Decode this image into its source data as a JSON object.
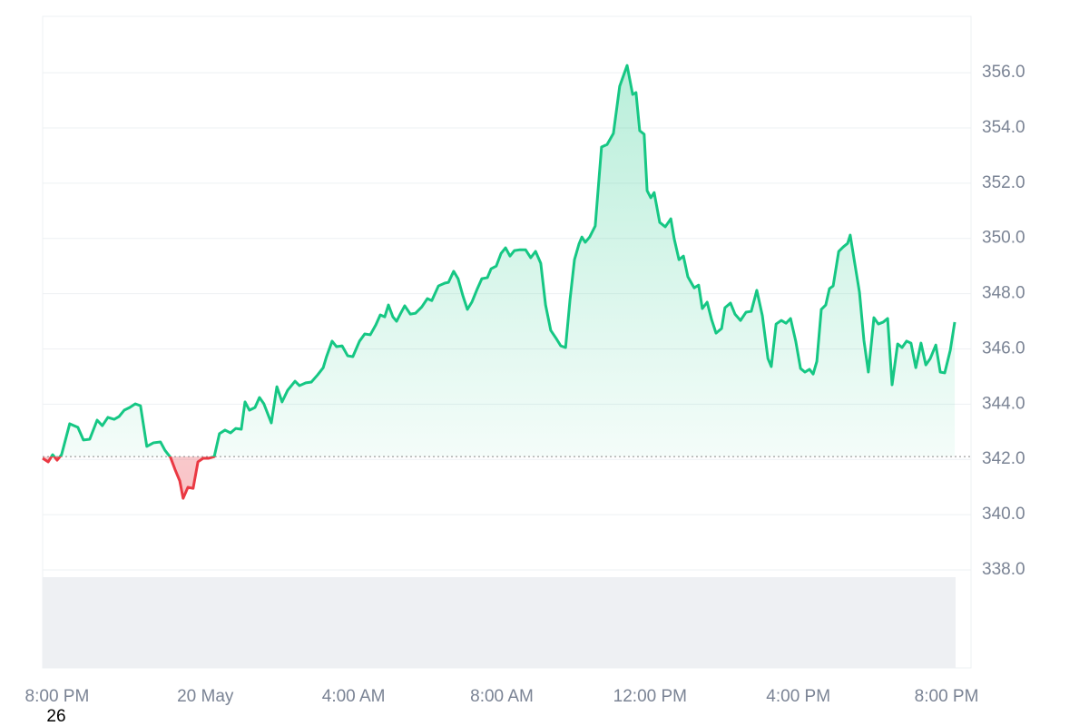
{
  "chart_data": {
    "type": "baseline-line",
    "x": [
      -0.39,
      -0.24,
      -0.12,
      0,
      0.12,
      0.34,
      0.56,
      0.71,
      0.88,
      1.08,
      1.22,
      1.37,
      1.54,
      1.67,
      1.81,
      1.96,
      2.11,
      2.25,
      2.42,
      2.6,
      2.79,
      2.91,
      3.06,
      3.18,
      3.31,
      3.4,
      3.53,
      3.67,
      3.8,
      3.94,
      4.09,
      4.24,
      4.38,
      4.53,
      4.68,
      4.82,
      4.97,
      5.07,
      5.19,
      5.34,
      5.46,
      5.58,
      5.78,
      5.93,
      6.07,
      6.22,
      6.42,
      6.54,
      6.71,
      6.86,
      7.03,
      7.18,
      7.27,
      7.42,
      7.54,
      7.69,
      7.84,
      7.98,
      8.16,
      8.3,
      8.45,
      8.6,
      8.72,
      8.84,
      8.94,
      9.06,
      9.16,
      9.26,
      9.38,
      9.53,
      9.67,
      9.84,
      9.99,
      10.11,
      10.29,
      10.46,
      10.56,
      10.7,
      10.82,
      10.95,
      11.07,
      11.19,
      11.34,
      11.46,
      11.61,
      11.71,
      11.85,
      11.98,
      12.1,
      12.22,
      12.34,
      12.49,
      12.64,
      12.78,
      12.91,
      13.05,
      13.18,
      13.32,
      13.47,
      13.59,
      13.72,
      13.84,
      13.96,
      14.08,
      14.16,
      14.25,
      14.37,
      14.52,
      14.69,
      14.84,
      15.01,
      15.18,
      15.38,
      15.53,
      15.62,
      15.72,
      15.84,
      15.92,
      16.02,
      16.11,
      16.26,
      16.41,
      16.56,
      16.65,
      16.78,
      16.9,
      17.02,
      17.19,
      17.31,
      17.41,
      17.54,
      17.66,
      17.78,
      17.93,
      18.02,
      18.17,
      18.29,
      18.44,
      18.59,
      18.73,
      18.88,
      19.03,
      19.18,
      19.27,
      19.4,
      19.54,
      19.67,
      19.79,
      19.93,
      20.06,
      20.18,
      20.3,
      20.4,
      20.5,
      20.62,
      20.74,
      20.84,
      20.94,
      21.09,
      21.21,
      21.33,
      21.4,
      21.53,
      21.65,
      21.77,
      21.89,
      22.04,
      22.16,
      22.29,
      22.41,
      22.53,
      22.68,
      22.8,
      22.92,
      23.04,
      23.17,
      23.31,
      23.44,
      23.56,
      23.71,
      23.83,
      23.95,
      24.1,
      24.22
    ],
    "values": [
      342.04,
      341.91,
      342.17,
      341.97,
      342.17,
      343.29,
      343.16,
      342.7,
      342.73,
      343.42,
      343.22,
      343.52,
      343.45,
      343.55,
      343.78,
      343.88,
      344.01,
      343.94,
      342.47,
      342.6,
      342.63,
      342.33,
      342.07,
      341.64,
      341.22,
      340.59,
      340.99,
      340.95,
      341.91,
      342.04,
      342.04,
      342.1,
      342.93,
      343.06,
      342.96,
      343.12,
      343.09,
      344.08,
      343.78,
      343.88,
      344.24,
      344.01,
      343.32,
      344.63,
      344.08,
      344.5,
      344.83,
      344.67,
      344.77,
      344.8,
      345.06,
      345.32,
      345.72,
      346.28,
      346.08,
      346.11,
      345.75,
      345.72,
      346.28,
      346.54,
      346.51,
      346.87,
      347.23,
      347.16,
      347.59,
      347.16,
      347,
      347.26,
      347.56,
      347.26,
      347.29,
      347.52,
      347.82,
      347.75,
      348.28,
      348.38,
      348.41,
      348.81,
      348.54,
      347.92,
      347.43,
      347.69,
      348.18,
      348.54,
      348.58,
      348.9,
      349,
      349.46,
      349.66,
      349.36,
      349.56,
      349.59,
      349.59,
      349.3,
      349.53,
      349.1,
      347.59,
      346.67,
      346.37,
      346.11,
      346.05,
      347.79,
      349.23,
      349.79,
      350.05,
      349.86,
      350.05,
      350.45,
      353.31,
      353.4,
      353.8,
      355.51,
      356.26,
      355.21,
      355.28,
      353.9,
      353.77,
      351.73,
      351.47,
      351.66,
      350.58,
      350.42,
      350.71,
      349.99,
      349.23,
      349.36,
      348.61,
      348.21,
      348.31,
      347.46,
      347.69,
      347.06,
      346.57,
      346.74,
      347.49,
      347.66,
      347.26,
      347.03,
      347.33,
      347.36,
      348.12,
      347.2,
      345.65,
      345.36,
      346.9,
      347.03,
      346.93,
      347.1,
      346.28,
      345.29,
      345.16,
      345.26,
      345.09,
      345.55,
      347.43,
      347.59,
      348.18,
      348.28,
      349.53,
      349.69,
      349.82,
      350.12,
      349.04,
      348.05,
      346.31,
      345.16,
      347.13,
      346.9,
      346.97,
      347.1,
      344.7,
      346.18,
      346.05,
      346.28,
      346.21,
      345.32,
      346.21,
      345.42,
      345.65,
      346.14,
      345.16,
      345.13,
      345.95,
      346.97
    ],
    "baseline": 342.1,
    "colors": {
      "up": "#16c784",
      "down": "#ea3943"
    },
    "xlim": [
      -0.39,
      24.66
    ],
    "xticks": [
      {
        "value": 0,
        "label": "8:00 PM"
      },
      {
        "value": 4,
        "label": "20 May"
      },
      {
        "value": 8,
        "label": "4:00 AM"
      },
      {
        "value": 12,
        "label": "8:00 AM"
      },
      {
        "value": 16,
        "label": "12:00 PM"
      },
      {
        "value": 20,
        "label": "4:00 PM"
      },
      {
        "value": 24,
        "label": "8:00 PM"
      }
    ],
    "ylim": [
      334.45,
      358.04
    ],
    "yticks": [
      {
        "value": 338,
        "label": "338.0"
      },
      {
        "value": 340,
        "label": "340.0"
      },
      {
        "value": 342,
        "label": "342.0"
      },
      {
        "value": 344,
        "label": "344.0"
      },
      {
        "value": 346,
        "label": "346.0"
      },
      {
        "value": 348,
        "label": "348.0"
      },
      {
        "value": 350,
        "label": "350.0"
      },
      {
        "value": 352,
        "label": "352.0"
      },
      {
        "value": 354,
        "label": "354.0"
      },
      {
        "value": 356,
        "label": "356.0"
      }
    ],
    "grid": true,
    "annotation": "26"
  }
}
